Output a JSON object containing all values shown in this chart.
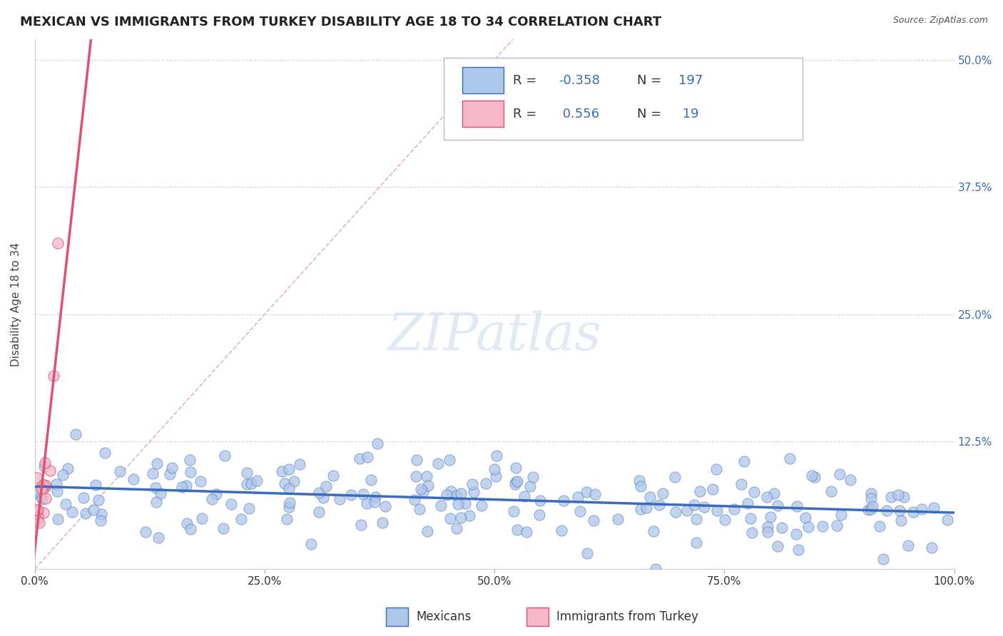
{
  "title": "MEXICAN VS IMMIGRANTS FROM TURKEY DISABILITY AGE 18 TO 34 CORRELATION CHART",
  "source": "Source: ZipAtlas.com",
  "ylabel": "Disability Age 18 to 34",
  "xlim": [
    0.0,
    1.0
  ],
  "ylim": [
    0.0,
    0.52
  ],
  "yticks": [
    0.0,
    0.125,
    0.25,
    0.375,
    0.5
  ],
  "ytick_labels": [
    "",
    "12.5%",
    "25.0%",
    "37.5%",
    "50.0%"
  ],
  "xticks": [
    0.0,
    0.25,
    0.5,
    0.75,
    1.0
  ],
  "xtick_labels": [
    "0.0%",
    "25.0%",
    "50.0%",
    "75.0%",
    "100.0%"
  ],
  "r_mexican": -0.358,
  "n_mexican": 197,
  "r_turkey": 0.556,
  "n_turkey": 19,
  "legend_labels": [
    "Mexicans",
    "Immigrants from Turkey"
  ],
  "scatter_color_mexican": "#aec6e8",
  "scatter_color_turkey": "#f4b8c8",
  "line_color_mexican": "#3a6bbf",
  "line_color_turkey": "#e05070",
  "trendline_dash_color": "#e0a0b0",
  "watermark": "ZIPatlas",
  "title_fontsize": 13,
  "axis_label_fontsize": 11,
  "tick_fontsize": 11,
  "legend_fontsize": 13,
  "watermark_fontsize": 52,
  "background_color": "#ffffff",
  "grid_color": "#c8c8c8",
  "value_color": "#3a6bbf",
  "legend_label_color": "#333333"
}
